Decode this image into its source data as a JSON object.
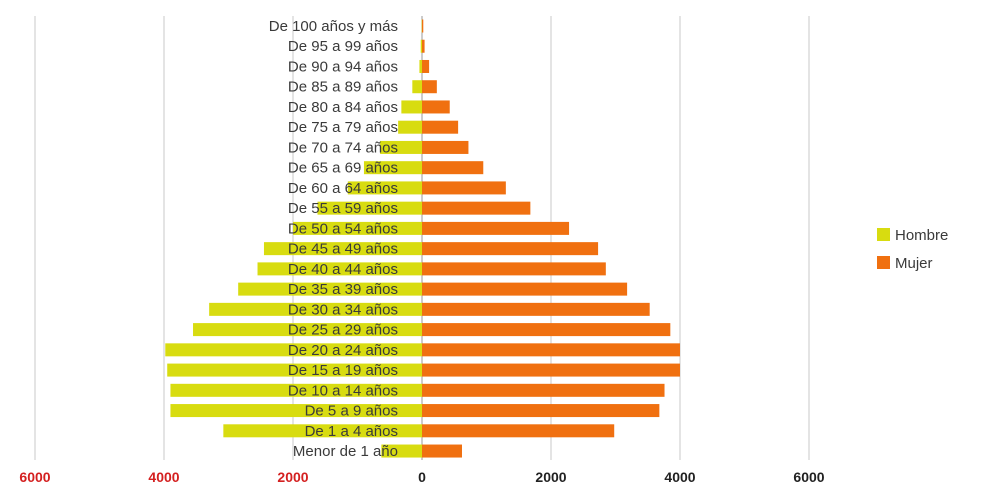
{
  "chart_data": {
    "type": "bar",
    "orientation": "horizontal",
    "stacked": "diverging",
    "categories": [
      "De 100 años y más",
      "De 95 a 99 años",
      "De 90 a 94 años",
      "De 85 a 89 años",
      "De 80 a 84 años",
      "De 75 a 79 años",
      "De 70 a 74 años",
      "De 65 a 69 años",
      "De 60 a 64 años",
      "De 55 a 59 años",
      "De 50 a 54 años",
      "De 45 a 49 años",
      "De 40 a 44 años",
      "De 35 a 39 años",
      "De 30 a 34 años",
      "De 25 a 29 años",
      "De 20 a 24 años",
      "De 15 a 19 años",
      "De 10 a 14 años",
      "De 5 a 9 años",
      "De 1 a 4 años",
      "Menor de 1 año"
    ],
    "series": [
      {
        "name": "Hombre",
        "color": "#d8dc10",
        "values": [
          -5,
          -20,
          -40,
          -150,
          -320,
          -370,
          -650,
          -900,
          -1150,
          -1620,
          -2000,
          -2450,
          -2550,
          -2850,
          -3300,
          -3550,
          -3980,
          -3950,
          -3900,
          -3900,
          -3080,
          -630
        ]
      },
      {
        "name": "Mujer",
        "color": "#f07010",
        "values": [
          20,
          40,
          110,
          230,
          430,
          560,
          720,
          950,
          1300,
          1680,
          2280,
          2730,
          2850,
          3180,
          3530,
          3850,
          4000,
          4000,
          3760,
          3680,
          2980,
          620
        ]
      }
    ],
    "x_ticks": [
      "6000",
      "4000",
      "2000",
      "0",
      "2000",
      "4000",
      "6000"
    ],
    "xlim": [
      -6000,
      6000
    ],
    "grid": "vertical",
    "legend_position": "right",
    "title": "",
    "xlabel": "",
    "ylabel": ""
  },
  "colors": {
    "negative_tick": "#d42020",
    "positive_tick": "#222222",
    "gridline": "#c8c8c8",
    "label_text": "#3a3a3a"
  }
}
